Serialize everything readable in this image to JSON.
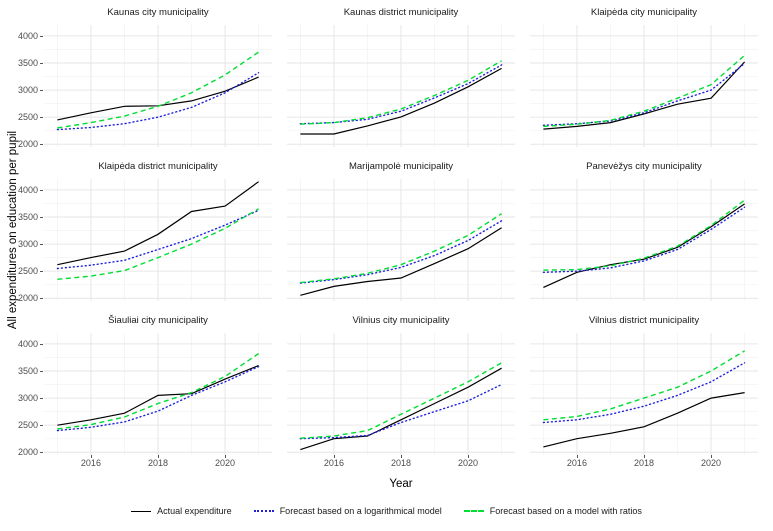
{
  "figure": {
    "ylabel": "All expenditures on education per pupil",
    "xlabel": "Year"
  },
  "colors": {
    "background": "#ffffff",
    "grid_major": "#e6e6e6",
    "grid_minor": "#f3f3f3",
    "axis_text": "#4d4d4d",
    "title_text": "#1a1a1a"
  },
  "chart_data": {
    "type": "line",
    "title": "",
    "xlabel": "Year",
    "ylabel": "All expenditures on education per pupil",
    "x": [
      2015,
      2016,
      2017,
      2018,
      2019,
      2020,
      2021
    ],
    "x_major_ticks": [
      2016,
      2018,
      2020
    ],
    "x_minor_ticks": [
      2015,
      2017,
      2019,
      2021
    ],
    "y_major_ticks": [
      2000,
      2500,
      3000,
      3500,
      4000
    ],
    "y_minor_ticks": [
      2250,
      2750,
      3250,
      3750
    ],
    "xlim": [
      2014.6,
      2021.4
    ],
    "ylim": [
      1950,
      4200
    ],
    "grid": true,
    "legend_position": "bottom",
    "series_meta": [
      {
        "key": "actual",
        "label": "Actual expenditure",
        "color": "#000000",
        "dash": "solid"
      },
      {
        "key": "log",
        "label": "Forecast based on a logarithmical model",
        "color": "#2222dd",
        "dash": "dotted"
      },
      {
        "key": "ratio",
        "label": "Forecast based on a model with ratios",
        "color": "#00dd33",
        "dash": "dashed"
      }
    ],
    "facets": [
      {
        "title": "Kaunas city municipality",
        "actual": [
          2450,
          2580,
          2700,
          2710,
          2800,
          2980,
          3240
        ],
        "log": [
          2270,
          2310,
          2380,
          2500,
          2680,
          2950,
          3320
        ],
        "ratio": [
          2300,
          2400,
          2520,
          2700,
          2950,
          3280,
          3700
        ]
      },
      {
        "title": "Kaunas district municipality",
        "actual": [
          2190,
          2190,
          2340,
          2505,
          2760,
          3060,
          3400
        ],
        "log": [
          2380,
          2400,
          2460,
          2610,
          2855,
          3120,
          3465
        ],
        "ratio": [
          2370,
          2400,
          2490,
          2650,
          2900,
          3180,
          3540
        ]
      },
      {
        "title": "Klaipėda city municipality",
        "actual": [
          2280,
          2330,
          2400,
          2560,
          2740,
          2850,
          3520
        ],
        "log": [
          2350,
          2380,
          2430,
          2580,
          2800,
          3000,
          3490
        ],
        "ratio": [
          2330,
          2370,
          2440,
          2610,
          2850,
          3100,
          3640
        ]
      },
      {
        "title": "Klaipėda district municipality",
        "actual": [
          2620,
          2750,
          2870,
          3180,
          3600,
          3700,
          4150
        ],
        "log": [
          2550,
          2610,
          2700,
          2900,
          3100,
          3350,
          3620
        ],
        "ratio": [
          2350,
          2410,
          2510,
          2750,
          3000,
          3290,
          3650
        ]
      },
      {
        "title": "Marijampolė municipality",
        "actual": [
          2055,
          2220,
          2310,
          2375,
          2640,
          2915,
          3300
        ],
        "log": [
          2280,
          2345,
          2435,
          2570,
          2790,
          3065,
          3430
        ],
        "ratio": [
          2290,
          2360,
          2460,
          2620,
          2870,
          3160,
          3560
        ]
      },
      {
        "title": "Panevėžys city municipality",
        "actual": [
          2200,
          2480,
          2620,
          2720,
          2940,
          3320,
          3740
        ],
        "log": [
          2480,
          2500,
          2560,
          2690,
          2900,
          3270,
          3680
        ],
        "ratio": [
          2520,
          2530,
          2600,
          2740,
          2960,
          3340,
          3810
        ]
      },
      {
        "title": "Šiauliai city municipality",
        "actual": [
          2500,
          2600,
          2720,
          3050,
          3080,
          3350,
          3600
        ],
        "log": [
          2400,
          2460,
          2560,
          2760,
          3050,
          3300,
          3580
        ],
        "ratio": [
          2430,
          2510,
          2650,
          2900,
          3100,
          3400,
          3820
        ]
      },
      {
        "title": "Vilnius city municipality",
        "actual": [
          2050,
          2250,
          2300,
          2600,
          2900,
          3200,
          3550
        ],
        "log": [
          2250,
          2270,
          2310,
          2550,
          2750,
          2950,
          3250
        ],
        "ratio": [
          2260,
          2300,
          2400,
          2700,
          3000,
          3300,
          3650
        ]
      },
      {
        "title": "Vilnius district municipality",
        "actual": [
          2100,
          2250,
          2350,
          2470,
          2720,
          3000,
          3100
        ],
        "log": [
          2550,
          2600,
          2700,
          2850,
          3050,
          3300,
          3650
        ],
        "ratio": [
          2600,
          2660,
          2800,
          3000,
          3200,
          3500,
          3870
        ]
      }
    ]
  }
}
